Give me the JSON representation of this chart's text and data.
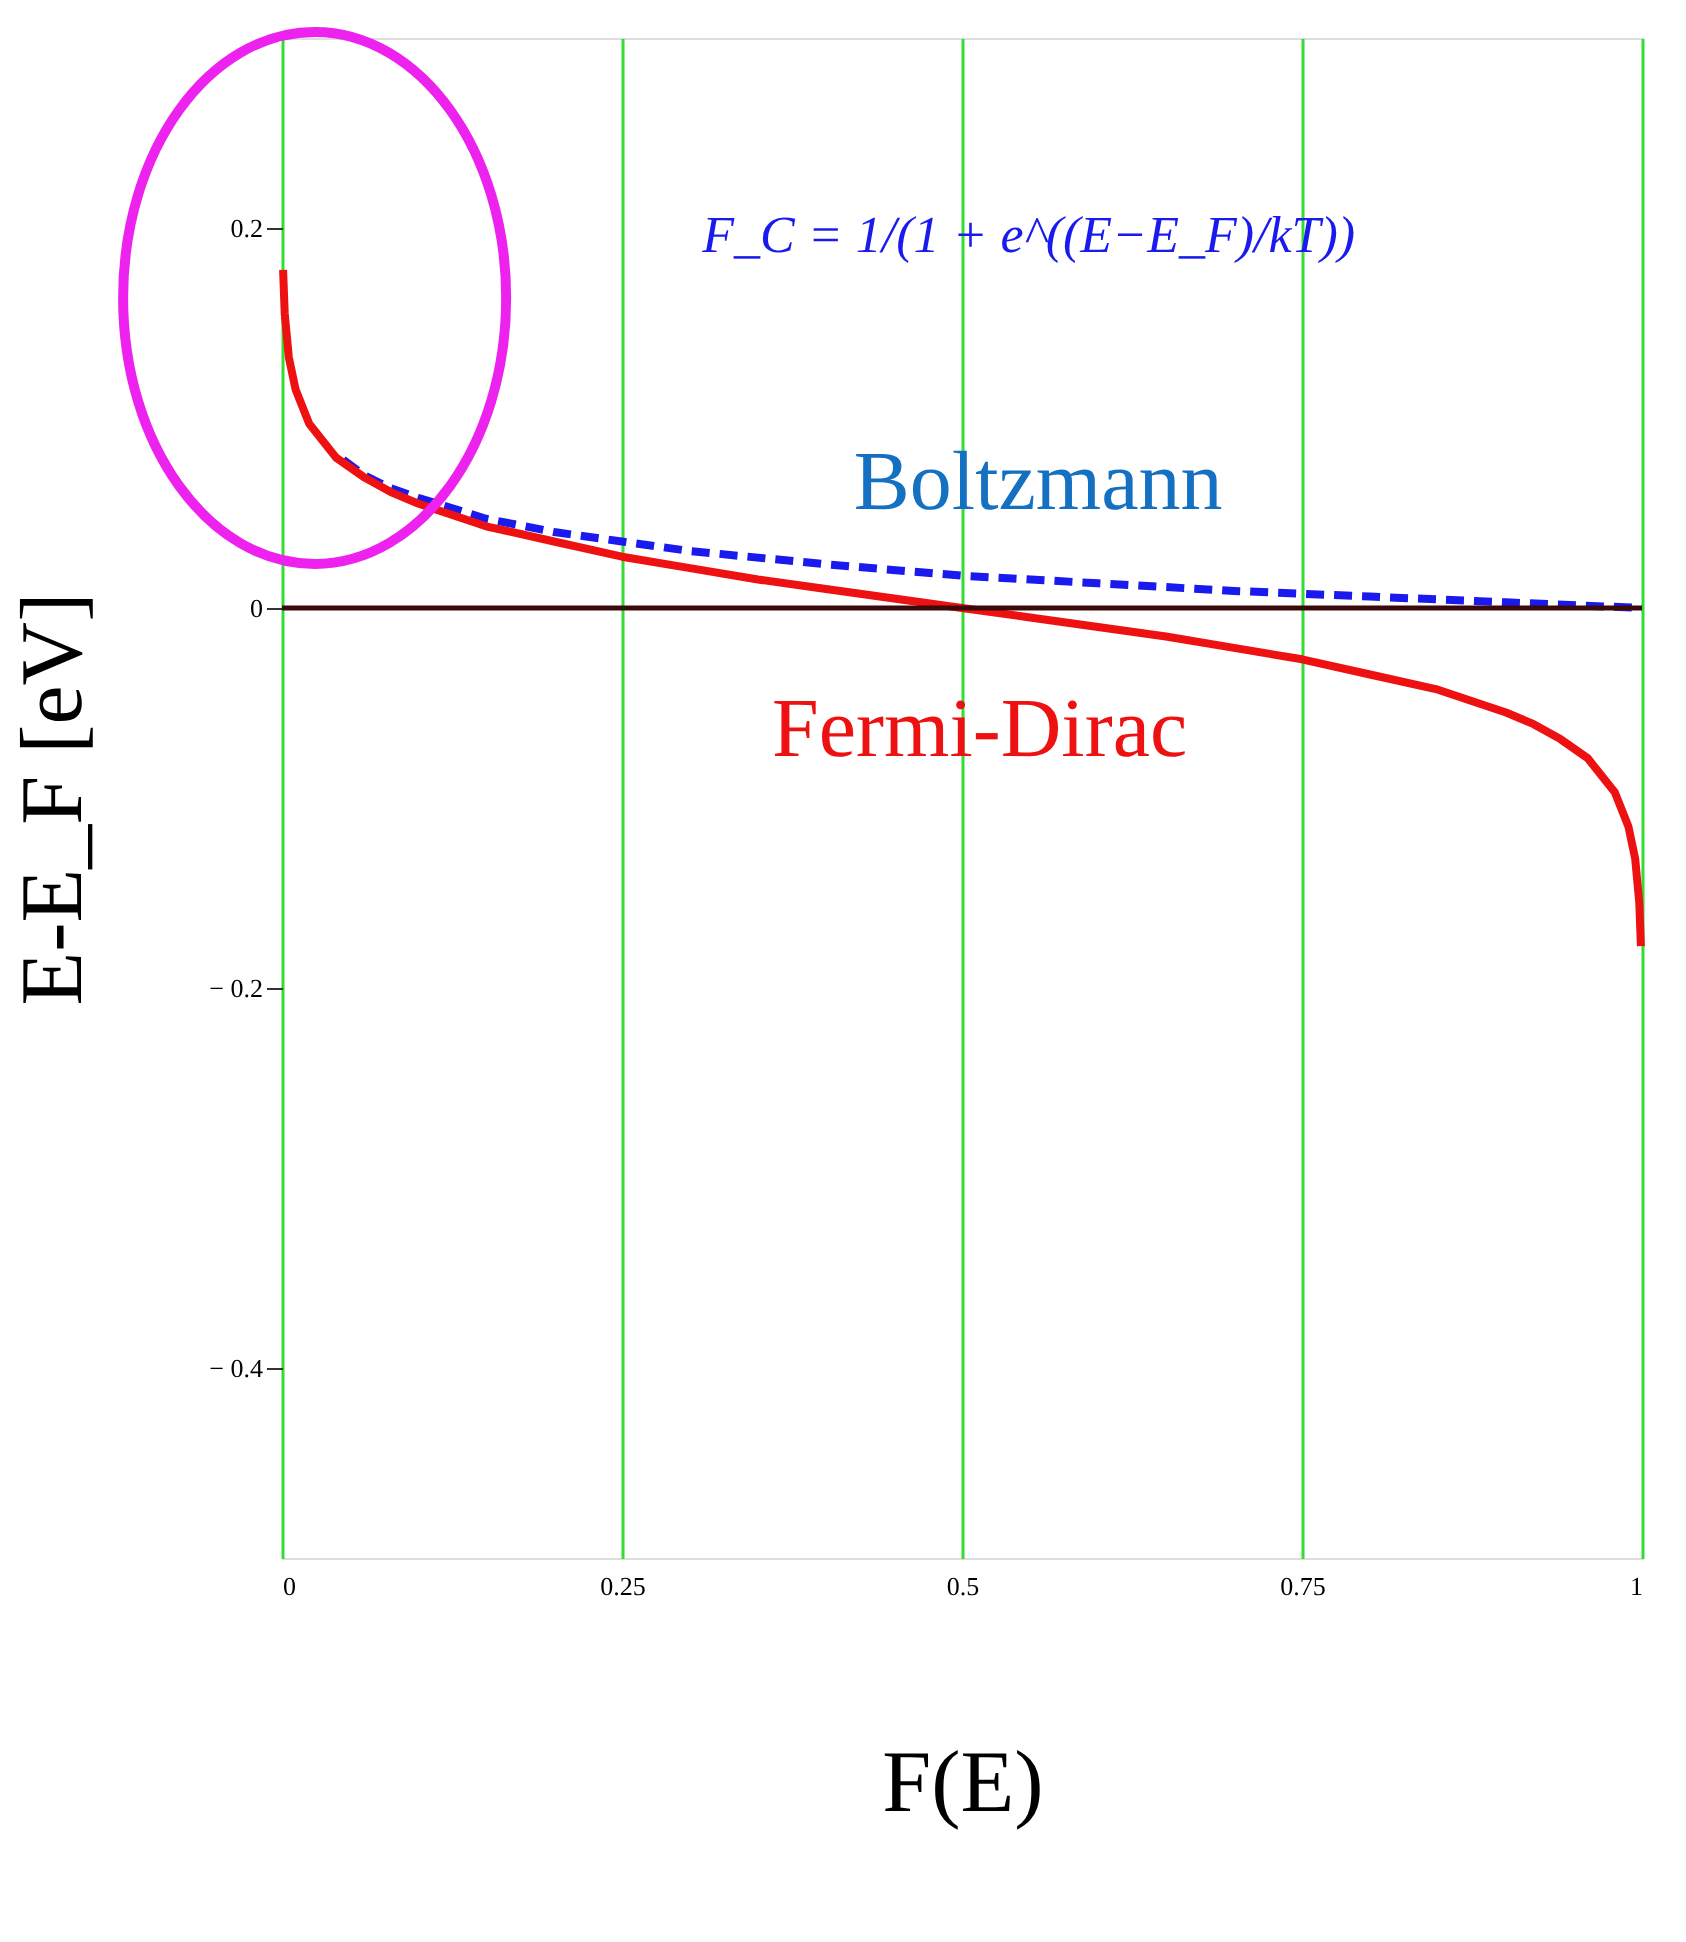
{
  "chart_data": {
    "type": "line",
    "xlabel": "F(E)",
    "ylabel": "E-E_F   [eV]",
    "annotations": [
      "F_C = 1/(1 + e^((E−E_F)/kT))"
    ],
    "xlim": [
      0,
      1
    ],
    "ylim": [
      -0.5,
      0.3
    ],
    "xticks": [
      0,
      0.25,
      0.5,
      0.75,
      1
    ],
    "yticks": [
      {
        "value": -0.4,
        "label": "− 0.4"
      },
      {
        "value": -0.2,
        "label": "− 0.2"
      },
      0,
      0.2
    ],
    "grid": "x",
    "marker": "none",
    "ref_lines": [
      {
        "axis": "y",
        "value": 0,
        "color": "#3a0a0a"
      }
    ],
    "series": [
      {
        "name": "Boltzmann",
        "color": "#1a1aee",
        "line_style": "dashed",
        "x": [
          0.045,
          0.06,
          0.08,
          0.1,
          0.15,
          0.2,
          0.25,
          0.3,
          0.4,
          0.5,
          0.6,
          0.7,
          0.8,
          0.9,
          1
        ],
        "values": [
          0.078,
          0.07,
          0.063,
          0.058,
          0.047,
          0.04,
          0.035,
          0.03,
          0.023,
          0.017,
          0.013,
          0.009,
          0.006,
          0.003,
          0
        ]
      },
      {
        "name": "Fermi-Dirac",
        "color": "#ee1111",
        "line_style": "solid",
        "x": [
          0.0008,
          0.002,
          0.005,
          0.01,
          0.02,
          0.04,
          0.06,
          0.08,
          0.1,
          0.15,
          0.2,
          0.25,
          0.3,
          0.35,
          0.4,
          0.45,
          0.5,
          0.55,
          0.6,
          0.65,
          0.7,
          0.75,
          0.8,
          0.85,
          0.9,
          0.92,
          0.94,
          0.96,
          0.98,
          0.99,
          0.995,
          0.998,
          0.9992
        ],
        "values": [
          0.178,
          0.155,
          0.132,
          0.115,
          0.097,
          0.079,
          0.069,
          0.061,
          0.055,
          0.043,
          0.035,
          0.027,
          0.021,
          0.015,
          0.01,
          0.005,
          0,
          -0.005,
          -0.01,
          -0.015,
          -0.021,
          -0.027,
          -0.035,
          -0.043,
          -0.055,
          -0.061,
          -0.069,
          -0.079,
          -0.097,
          -0.115,
          -0.132,
          -0.155,
          -0.178
        ]
      }
    ]
  }
}
